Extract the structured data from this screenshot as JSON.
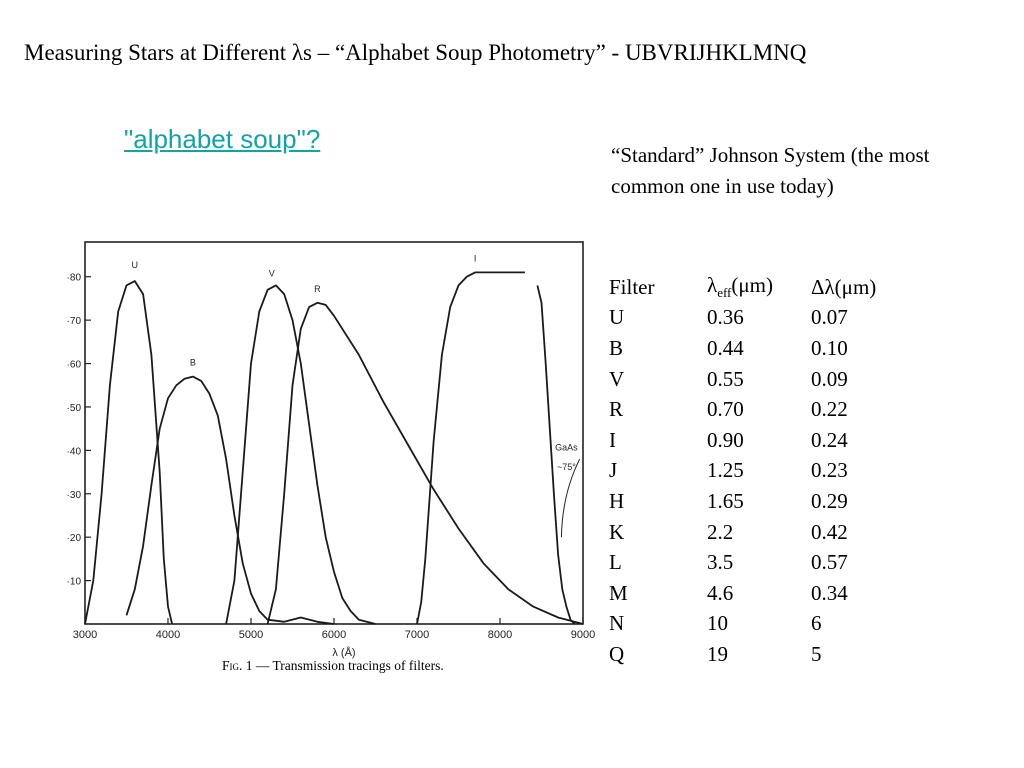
{
  "slide": {
    "title": "Measuring Stars at Different λs – “Alphabet Soup Photometry” - UBVRIJHKLMNQ",
    "link_text": "\"alphabet soup\"?",
    "description": "“Standard” Johnson System (the most common one in use today)"
  },
  "filter_table": {
    "headers": {
      "filter": "Filter",
      "lambda_main": "λ",
      "lambda_sub": "eff",
      "lambda_units": "(μm)",
      "delta": "Δλ(μm)"
    },
    "rows": [
      {
        "filter": "U",
        "lambda_eff": "0.36",
        "delta_lambda": "0.07"
      },
      {
        "filter": "B",
        "lambda_eff": "0.44",
        "delta_lambda": "0.10"
      },
      {
        "filter": "V",
        "lambda_eff": "0.55",
        "delta_lambda": "0.09"
      },
      {
        "filter": "R",
        "lambda_eff": "0.70",
        "delta_lambda": "0.22"
      },
      {
        "filter": "I",
        "lambda_eff": "0.90",
        "delta_lambda": "0.24"
      },
      {
        "filter": "J",
        "lambda_eff": "1.25",
        "delta_lambda": "0.23"
      },
      {
        "filter": "H",
        "lambda_eff": "1.65",
        "delta_lambda": "0.29"
      },
      {
        "filter": "K",
        "lambda_eff": "2.2",
        "delta_lambda": "0.42"
      },
      {
        "filter": "L",
        "lambda_eff": "3.5",
        "delta_lambda": "0.57"
      },
      {
        "filter": "M",
        "lambda_eff": "4.6",
        "delta_lambda": "0.34"
      },
      {
        "filter": "N",
        "lambda_eff": "10",
        "delta_lambda": "6"
      },
      {
        "filter": "Q",
        "lambda_eff": "19",
        "delta_lambda": "5"
      }
    ]
  },
  "chart_data": {
    "type": "line",
    "caption_fig": "Fig. 1",
    "caption_text": " — Transmission tracings of filters.",
    "xlabel": "λ (Å)",
    "ylabel": "",
    "xlim": [
      3000,
      9000
    ],
    "ylim": [
      0,
      88
    ],
    "x_ticks": [
      3000,
      4000,
      5000,
      6000,
      7000,
      8000,
      9000
    ],
    "y_ticks": [
      10,
      20,
      30,
      40,
      50,
      60,
      70,
      80
    ],
    "y_tick_labels": [
      "·10",
      "·20",
      "·30",
      "·40",
      "·50",
      "·60",
      "·70",
      "·80"
    ],
    "grid": false,
    "annotation_line1": "GaAs",
    "annotation_line2": "~75°",
    "series": [
      {
        "name": "U",
        "points": [
          [
            3000,
            0
          ],
          [
            3100,
            10
          ],
          [
            3200,
            30
          ],
          [
            3300,
            55
          ],
          [
            3400,
            72
          ],
          [
            3500,
            78
          ],
          [
            3600,
            79
          ],
          [
            3700,
            76
          ],
          [
            3800,
            62
          ],
          [
            3900,
            35
          ],
          [
            3950,
            15
          ],
          [
            4000,
            4
          ],
          [
            4050,
            0
          ]
        ]
      },
      {
        "name": "B",
        "points": [
          [
            3500,
            2
          ],
          [
            3600,
            8
          ],
          [
            3700,
            18
          ],
          [
            3800,
            32
          ],
          [
            3900,
            45
          ],
          [
            4000,
            52
          ],
          [
            4100,
            55
          ],
          [
            4200,
            56.5
          ],
          [
            4300,
            57
          ],
          [
            4400,
            56
          ],
          [
            4500,
            53
          ],
          [
            4600,
            48
          ],
          [
            4700,
            38
          ],
          [
            4800,
            25
          ],
          [
            4900,
            14
          ],
          [
            5000,
            7
          ],
          [
            5100,
            3
          ],
          [
            5200,
            1
          ],
          [
            5400,
            0.5
          ],
          [
            5600,
            1.5
          ],
          [
            5800,
            0.5
          ],
          [
            6000,
            0
          ]
        ]
      },
      {
        "name": "V",
        "points": [
          [
            4700,
            0
          ],
          [
            4800,
            10
          ],
          [
            4900,
            35
          ],
          [
            5000,
            60
          ],
          [
            5100,
            72
          ],
          [
            5200,
            77
          ],
          [
            5300,
            78
          ],
          [
            5400,
            76
          ],
          [
            5500,
            70
          ],
          [
            5600,
            60
          ],
          [
            5700,
            46
          ],
          [
            5800,
            32
          ],
          [
            5900,
            20
          ],
          [
            6000,
            12
          ],
          [
            6100,
            6
          ],
          [
            6200,
            3
          ],
          [
            6300,
            1
          ],
          [
            6500,
            0
          ]
        ]
      },
      {
        "name": "R",
        "points": [
          [
            5200,
            0
          ],
          [
            5300,
            8
          ],
          [
            5400,
            30
          ],
          [
            5500,
            55
          ],
          [
            5600,
            68
          ],
          [
            5700,
            73
          ],
          [
            5800,
            74
          ],
          [
            5900,
            73.5
          ],
          [
            6000,
            71
          ],
          [
            6300,
            62
          ],
          [
            6600,
            51
          ],
          [
            6900,
            41
          ],
          [
            7200,
            31
          ],
          [
            7500,
            22
          ],
          [
            7800,
            14
          ],
          [
            8100,
            8
          ],
          [
            8400,
            4
          ],
          [
            8700,
            1.5
          ],
          [
            9000,
            0
          ]
        ]
      },
      {
        "name": "I",
        "points": [
          [
            7000,
            0
          ],
          [
            7050,
            5
          ],
          [
            7100,
            15
          ],
          [
            7200,
            42
          ],
          [
            7300,
            62
          ],
          [
            7400,
            73
          ],
          [
            7500,
            78
          ],
          [
            7600,
            80
          ],
          [
            7700,
            81
          ],
          [
            8000,
            81
          ],
          [
            8300,
            81
          ]
        ]
      },
      {
        "name": "GaAs",
        "points": [
          [
            8450,
            78
          ],
          [
            8500,
            74
          ],
          [
            8550,
            60
          ],
          [
            8600,
            45
          ],
          [
            8650,
            30
          ],
          [
            8700,
            16
          ],
          [
            8750,
            8
          ],
          [
            8800,
            4
          ],
          [
            8850,
            1
          ],
          [
            8900,
            0
          ]
        ]
      }
    ],
    "curve_label_points": {
      "U": [
        3600,
        82
      ],
      "B": [
        4300,
        59.5
      ],
      "V": [
        5250,
        80
      ],
      "R": [
        5800,
        76.5
      ],
      "I": [
        7700,
        83.5
      ]
    }
  }
}
